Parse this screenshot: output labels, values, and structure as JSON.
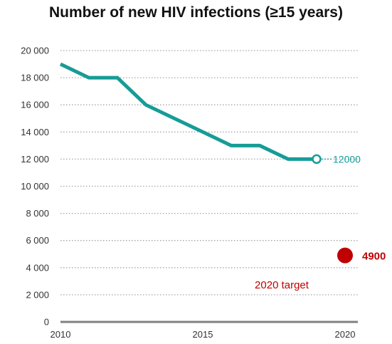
{
  "chart_data": {
    "type": "line",
    "title": "Number of new HIV infections (≥15 years)",
    "xlabel": "",
    "ylabel": "",
    "xlim": [
      2010,
      2020
    ],
    "ylim": [
      0,
      20000
    ],
    "x_ticks": [
      2010,
      2015,
      2020
    ],
    "x_tick_labels": [
      "2010",
      "2015",
      "2020"
    ],
    "y_ticks": [
      0,
      2000,
      4000,
      6000,
      8000,
      10000,
      12000,
      14000,
      16000,
      18000,
      20000
    ],
    "y_tick_labels": [
      "0",
      "2 000",
      "4 000",
      "6 000",
      "8 000",
      "10 000",
      "12 000",
      "14 000",
      "16 000",
      "18 000",
      "20 000"
    ],
    "grid": true,
    "series": [
      {
        "x": [
          2010,
          2011,
          2012,
          2013,
          2014,
          2015,
          2016,
          2017,
          2018,
          2019
        ],
        "values": [
          19000,
          18000,
          18000,
          16000,
          15000,
          14000,
          13000,
          13000,
          12000,
          12000
        ],
        "color": "#169c97"
      }
    ],
    "annotations": {
      "last_value": {
        "x": 2019,
        "y": 12000,
        "text": "12000",
        "color": "#169c97"
      },
      "target": {
        "x": 2020,
        "y": 4900,
        "text": "4900",
        "label": "2020 target",
        "color": "#c00000"
      }
    }
  }
}
